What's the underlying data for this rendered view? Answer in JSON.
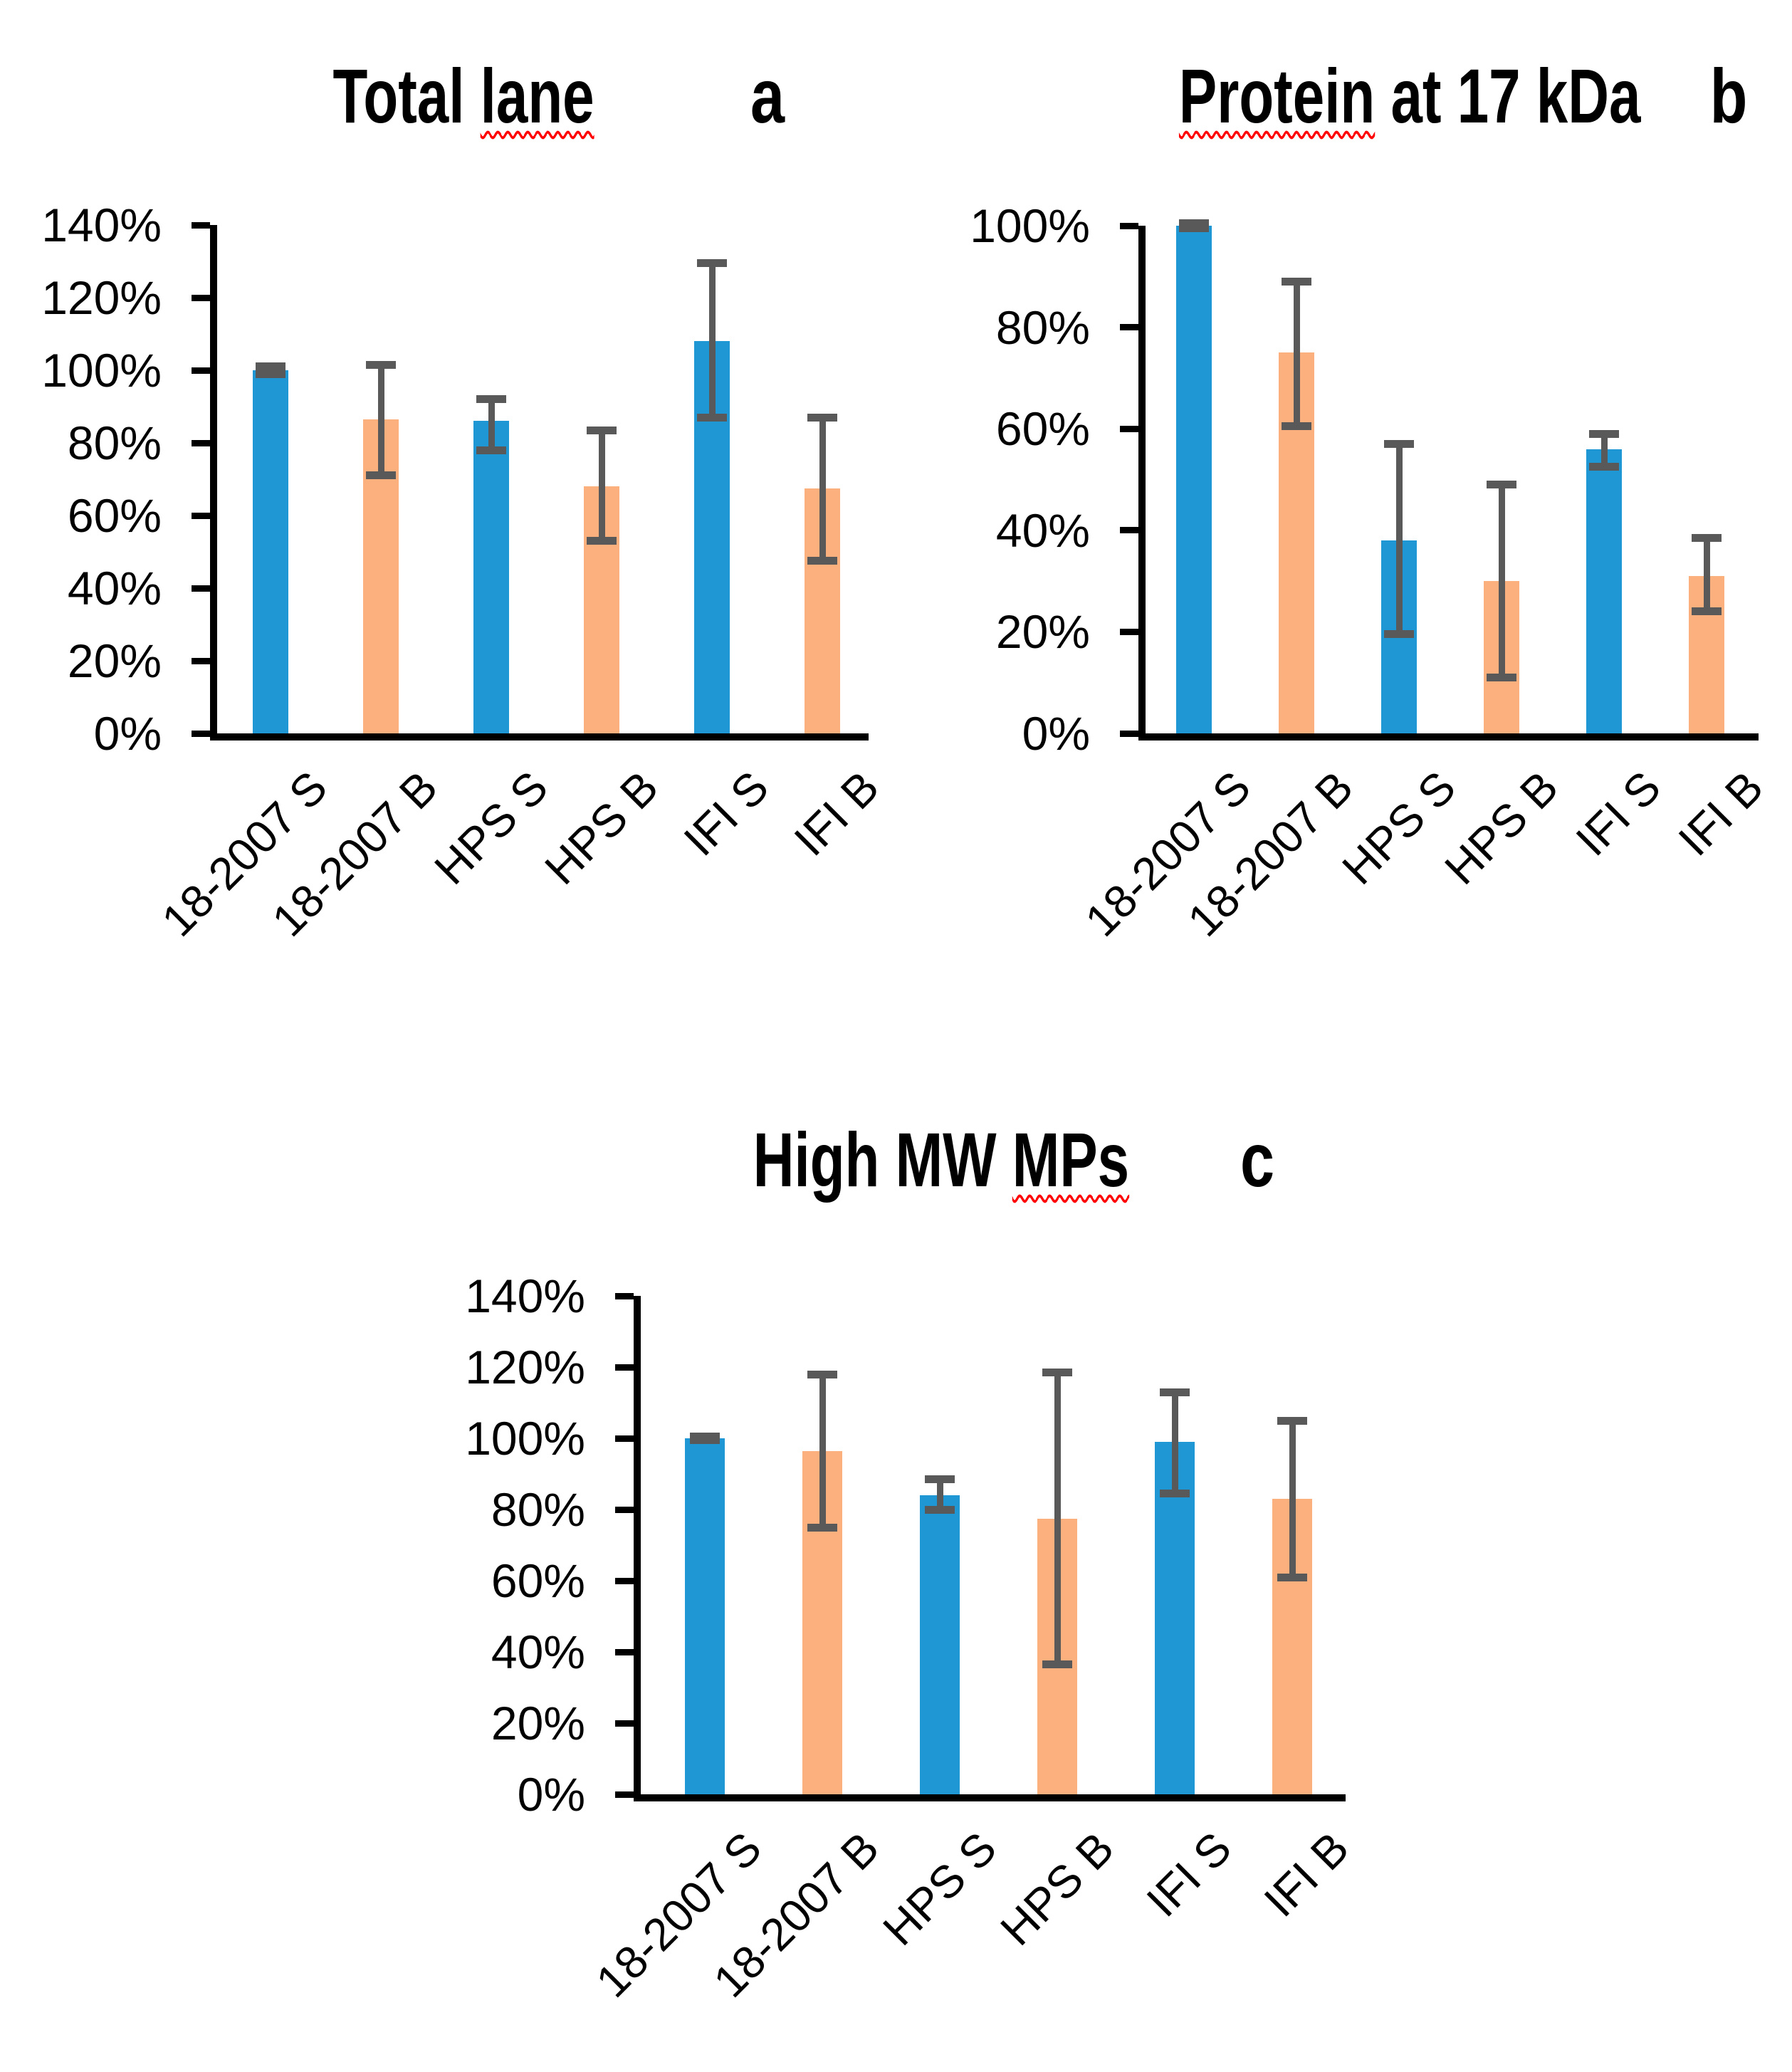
{
  "figure": {
    "description_categories": [
      "18-2007 S",
      "18-2007 B",
      "HPS S",
      "HPS B",
      "IFI S",
      "IFI B"
    ]
  },
  "colors": {
    "bar_blue": "#1E97D4",
    "bar_orange": "#FBB07D",
    "error_bar": "#595959",
    "axis": "#000000",
    "squiggle_underline": "#FF0000",
    "text": "#000000"
  },
  "chart_data": [
    {
      "id": "a",
      "type": "bar",
      "title": "Total lane",
      "title_prefix": "Total ",
      "title_underlined_word": "lane",
      "title_suffix": "",
      "panel_letter": "a",
      "categories": [
        "18-2007 S",
        "18-2007 B",
        "HPS S",
        "HPS B",
        "IFI S",
        "IFI B"
      ],
      "values": [
        100,
        86.5,
        86,
        68,
        108,
        67.5
      ],
      "error_low": [
        99,
        71,
        78,
        53,
        87,
        47.5
      ],
      "error_high": [
        101,
        101.5,
        92,
        83.5,
        129.5,
        87
      ],
      "bar_colors": [
        "blue",
        "orange",
        "blue",
        "orange",
        "blue",
        "orange"
      ],
      "yticks": [
        "0%",
        "20%",
        "40%",
        "60%",
        "80%",
        "100%",
        "120%",
        "140%"
      ],
      "ylim": [
        0,
        140
      ],
      "xlabel": "",
      "ylabel": "",
      "grid": false,
      "legend": "none"
    },
    {
      "id": "b",
      "type": "bar",
      "title": "Protein at 17 kDa",
      "title_prefix": "",
      "title_underlined_word": "Protein",
      "title_suffix": " at 17 kDa",
      "panel_letter": "b",
      "categories": [
        "18-2007 S",
        "18-2007 B",
        "HPS S",
        "HPS B",
        "IFI S",
        "IFI B"
      ],
      "values": [
        100,
        75,
        38,
        30,
        56,
        31
      ],
      "error_low": [
        99.5,
        60.5,
        19.5,
        11,
        52.5,
        24
      ],
      "error_high": [
        100.5,
        89,
        57,
        49,
        59,
        38.5
      ],
      "bar_colors": [
        "blue",
        "orange",
        "blue",
        "orange",
        "blue",
        "orange"
      ],
      "yticks": [
        "0%",
        "20%",
        "40%",
        "60%",
        "80%",
        "100%"
      ],
      "ylim": [
        0,
        100
      ],
      "xlabel": "",
      "ylabel": "",
      "grid": false,
      "legend": "none"
    },
    {
      "id": "c",
      "type": "bar",
      "title": "High MW MPs",
      "title_prefix": "High MW ",
      "title_underlined_word": "MPs",
      "title_suffix": "",
      "panel_letter": "c",
      "categories": [
        "18-2007 S",
        "18-2007 B",
        "HPS S",
        "HPS B",
        "IFI S",
        "IFI B"
      ],
      "values": [
        100,
        96.5,
        84,
        77.5,
        99,
        83
      ],
      "error_low": [
        99.5,
        75,
        80,
        36.5,
        84.5,
        61
      ],
      "error_high": [
        100.5,
        118,
        88.5,
        118.5,
        113,
        105
      ],
      "bar_colors": [
        "blue",
        "orange",
        "blue",
        "orange",
        "blue",
        "orange"
      ],
      "yticks": [
        "0%",
        "20%",
        "40%",
        "60%",
        "80%",
        "100%",
        "120%",
        "140%"
      ],
      "ylim": [
        0,
        140
      ],
      "xlabel": "",
      "ylabel": "",
      "grid": false,
      "legend": "none"
    }
  ]
}
